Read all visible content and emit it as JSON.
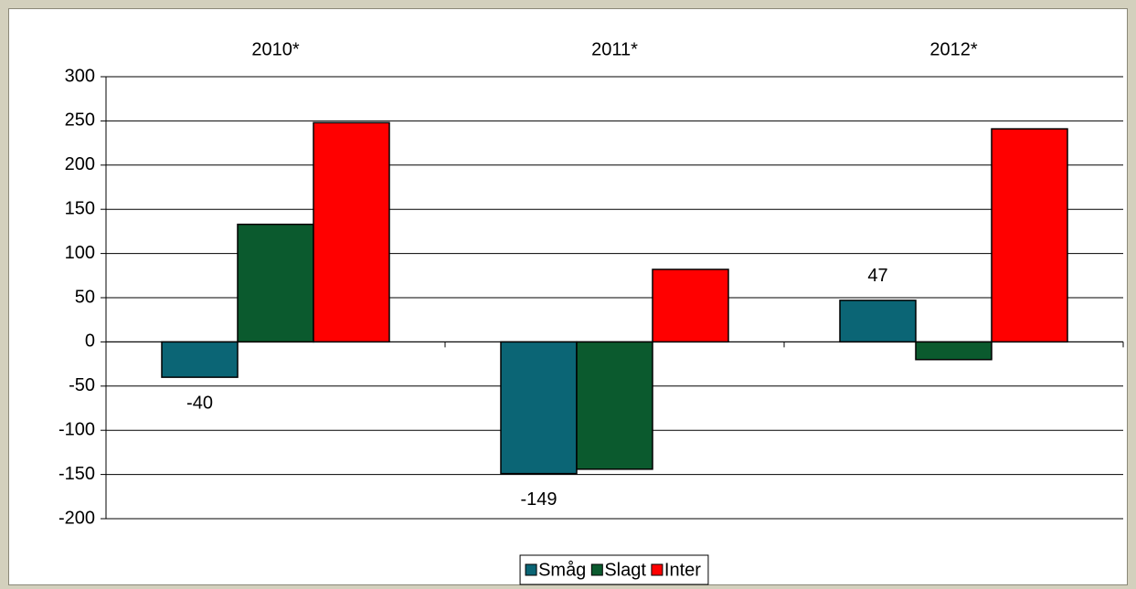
{
  "chart_data": {
    "type": "bar",
    "categories": [
      "2010*",
      "2011*",
      "2012*"
    ],
    "series": [
      {
        "name": "Småg",
        "color": "#0b6575",
        "values": [
          -40,
          -149,
          47
        ],
        "data_labels": true
      },
      {
        "name": "Slagt",
        "color": "#0b5a2e",
        "values": [
          133,
          -144,
          -20
        ]
      },
      {
        "name": "Inter",
        "color": "#ff0000",
        "values": [
          248,
          82,
          241
        ]
      }
    ],
    "ylim": [
      -200,
      300
    ],
    "yticks": [
      -200,
      -150,
      -100,
      -50,
      0,
      50,
      100,
      150,
      200,
      250,
      300
    ],
    "grid": true,
    "legend": "bottom"
  }
}
